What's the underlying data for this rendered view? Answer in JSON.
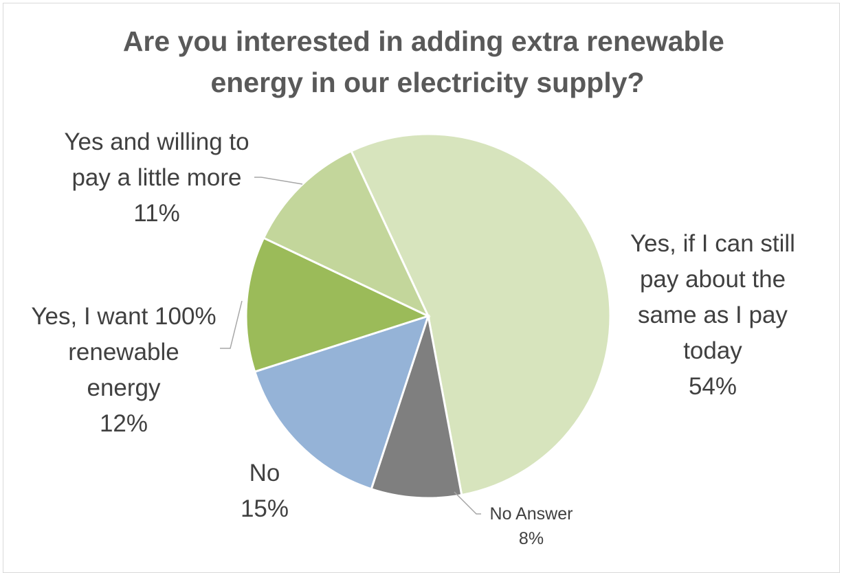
{
  "chart_data": {
    "type": "pie",
    "title_lines": [
      "Are you interested in adding extra renewable",
      "energy in our electricity supply?"
    ],
    "start_angle_deg": -25,
    "direction": "clockwise",
    "slices": [
      {
        "name": "Yes, if I can still pay about the same as I pay today",
        "label_lines": [
          "Yes, if I can still",
          "pay about the",
          "same as I pay",
          "today"
        ],
        "value": 54,
        "value_label": "54%",
        "color": "#d7e4bd"
      },
      {
        "name": "No Answer",
        "label_lines": [
          "No Answer"
        ],
        "value": 8,
        "value_label": "8%",
        "color": "#7f7f7f"
      },
      {
        "name": "No",
        "label_lines": [
          "No"
        ],
        "value": 15,
        "value_label": "15%",
        "color": "#95b3d7"
      },
      {
        "name": "Yes, I want 100% renewable energy",
        "label_lines": [
          "Yes, I want 100%",
          "renewable",
          "energy"
        ],
        "value": 12,
        "value_label": "12%",
        "color": "#9bbb59"
      },
      {
        "name": "Yes and willing to pay a little more",
        "label_lines": [
          "Yes and willing to",
          "pay a little more"
        ],
        "value": 11,
        "value_label": "11%",
        "color": "#c3d69b"
      }
    ]
  }
}
